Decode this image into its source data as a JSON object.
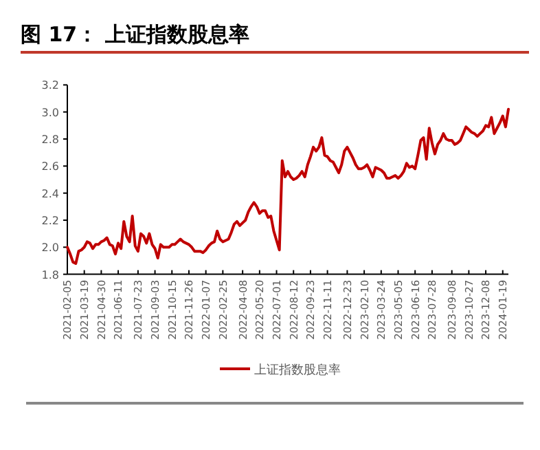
{
  "chart_data": {
    "type": "line",
    "title": "图 17： 上证指数股息率",
    "categories": [
      "2021-02-05",
      null,
      null,
      null,
      null,
      null,
      "2021-03-19",
      null,
      null,
      null,
      null,
      null,
      "2021-04-30",
      null,
      null,
      null,
      null,
      null,
      "2021-06-11",
      null,
      null,
      null,
      null,
      null,
      null,
      "2021-07-23",
      null,
      null,
      null,
      null,
      null,
      "2021-09-03",
      null,
      null,
      null,
      null,
      null,
      "2021-10-15",
      null,
      null,
      null,
      null,
      null,
      "2021-11-26",
      null,
      null,
      null,
      null,
      null,
      "2022-01-07",
      null,
      null,
      null,
      null,
      null,
      "2022-02-25",
      null,
      null,
      null,
      null,
      null,
      null,
      "2022-04-08",
      null,
      null,
      null,
      null,
      null,
      "2022-05-20",
      null,
      null,
      null,
      null,
      null,
      "2022-07-01",
      null,
      null,
      null,
      null,
      null,
      "2022-08-12",
      null,
      null,
      null,
      null,
      null,
      "2022-09-23",
      null,
      null,
      null,
      null,
      null,
      "2022-11-11",
      null,
      null,
      null,
      null,
      null,
      null,
      "2022-12-23",
      null,
      null,
      null,
      null,
      null,
      "2023-02-10",
      null,
      null,
      null,
      null,
      null,
      "2023-03-24",
      null,
      null,
      null,
      null,
      null,
      "2023-05-05",
      null,
      null,
      null,
      null,
      null,
      "2023-06-16",
      null,
      null,
      null,
      null,
      null,
      "2023-07-28",
      null,
      null,
      null,
      null,
      null,
      null,
      "2023-09-08",
      null,
      null,
      null,
      null,
      null,
      "2023-10-27",
      null,
      null,
      null,
      null,
      null,
      "2023-12-08",
      null,
      null,
      null,
      null,
      null,
      "2024-01-19",
      null,
      null
    ],
    "series": [
      {
        "name": "上证指数股息率",
        "color": "#c00000",
        "values": [
          2.0,
          1.95,
          1.89,
          1.88,
          1.97,
          1.98,
          2.0,
          2.04,
          2.03,
          1.99,
          2.02,
          2.02,
          2.04,
          2.05,
          2.07,
          2.02,
          2.01,
          1.95,
          2.03,
          1.99,
          2.19,
          2.08,
          2.04,
          2.23,
          2.01,
          1.97,
          2.1,
          2.08,
          2.03,
          2.1,
          2.02,
          1.99,
          1.92,
          2.02,
          2.0,
          2.0,
          2.0,
          2.02,
          2.02,
          2.04,
          2.06,
          2.04,
          2.03,
          2.02,
          2.0,
          1.97,
          1.97,
          1.97,
          1.96,
          1.98,
          2.01,
          2.03,
          2.04,
          2.12,
          2.06,
          2.04,
          2.05,
          2.06,
          2.11,
          2.17,
          2.19,
          2.16,
          2.18,
          2.2,
          2.26,
          2.3,
          2.33,
          2.3,
          2.25,
          2.27,
          2.27,
          2.22,
          2.23,
          2.12,
          2.05,
          1.98,
          2.64,
          2.52,
          2.56,
          2.52,
          2.5,
          2.51,
          2.53,
          2.56,
          2.52,
          2.61,
          2.67,
          2.74,
          2.71,
          2.74,
          2.81,
          2.68,
          2.67,
          2.64,
          2.63,
          2.59,
          2.55,
          2.61,
          2.71,
          2.74,
          2.7,
          2.66,
          2.61,
          2.58,
          2.58,
          2.59,
          2.61,
          2.57,
          2.52,
          2.59,
          2.58,
          2.57,
          2.55,
          2.51,
          2.51,
          2.52,
          2.53,
          2.51,
          2.53,
          2.56,
          2.62,
          2.59,
          2.6,
          2.58,
          2.68,
          2.79,
          2.81,
          2.65,
          2.88,
          2.77,
          2.69,
          2.76,
          2.79,
          2.84,
          2.8,
          2.79,
          2.79,
          2.76,
          2.77,
          2.79,
          2.84,
          2.89,
          2.87,
          2.85,
          2.84,
          2.82,
          2.84,
          2.86,
          2.9,
          2.89,
          2.96,
          2.84,
          2.88,
          2.92,
          2.97,
          2.89,
          3.02
        ]
      }
    ],
    "ylim": [
      1.8,
      3.2
    ],
    "yticks": [
      1.8,
      {
        "value": 2.0,
        "label": "2.0"
      },
      2.2,
      2.4,
      2.6,
      2.8,
      {
        "value": 3.0,
        "label": "3.0"
      },
      3.2
    ],
    "legend": "bottom",
    "marker": "none",
    "line_style": "solid",
    "grid": false
  }
}
